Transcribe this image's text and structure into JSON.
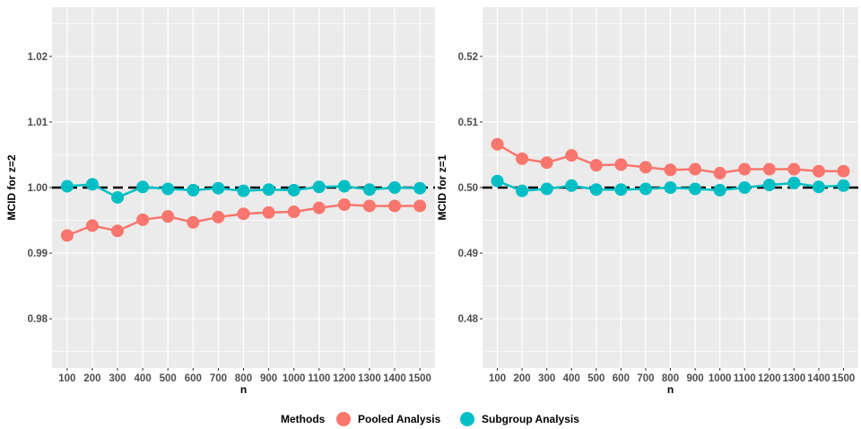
{
  "legend": {
    "title": "Methods",
    "items": [
      {
        "label": "Pooled Analysis",
        "color": "#F8766D"
      },
      {
        "label": "Subgroup Analysis",
        "color": "#00BFC4"
      }
    ]
  },
  "chart_data": [
    {
      "type": "line",
      "xlabel": "n",
      "ylabel": "MCID for z=2",
      "categories": [
        "100",
        "200",
        "300",
        "400",
        "500",
        "600",
        "700",
        "800",
        "900",
        "1000",
        "1100",
        "1200",
        "1300",
        "1400",
        "1500"
      ],
      "ylim": [
        0.9725,
        1.0275
      ],
      "yticks": [
        0.98,
        0.99,
        1.0,
        1.01,
        1.02
      ],
      "ytick_labels": [
        "0.98",
        "0.99",
        "1.00",
        "1.01",
        "1.02"
      ],
      "reference_line": 1.0,
      "grid": true,
      "series": [
        {
          "name": "Pooled Analysis",
          "color": "#F8766D",
          "values": [
            0.9927,
            0.9942,
            0.9934,
            0.9951,
            0.9956,
            0.9947,
            0.9955,
            0.996,
            0.9962,
            0.9963,
            0.9969,
            0.9974,
            0.9972,
            0.9972,
            0.9972
          ]
        },
        {
          "name": "Subgroup Analysis",
          "color": "#00BFC4",
          "values": [
            1.0002,
            1.0005,
            0.9985,
            1.0001,
            0.9998,
            0.9996,
            0.9999,
            0.9995,
            0.9997,
            0.9996,
            1.0001,
            1.0002,
            0.9997,
            1.0,
            0.9999
          ]
        }
      ]
    },
    {
      "type": "line",
      "xlabel": "n",
      "ylabel": "MCID for z=1",
      "categories": [
        "100",
        "200",
        "300",
        "400",
        "500",
        "600",
        "700",
        "800",
        "900",
        "1000",
        "1100",
        "1200",
        "1300",
        "1400",
        "1500"
      ],
      "ylim": [
        0.4725,
        0.5275
      ],
      "yticks": [
        0.48,
        0.49,
        0.5,
        0.51,
        0.52
      ],
      "ytick_labels": [
        "0.48",
        "0.49",
        "0.50",
        "0.51",
        "0.52"
      ],
      "reference_line": 0.5,
      "grid": true,
      "series": [
        {
          "name": "Pooled Analysis",
          "color": "#F8766D",
          "values": [
            0.5066,
            0.5044,
            0.5038,
            0.5049,
            0.5034,
            0.5035,
            0.5031,
            0.5027,
            0.5028,
            0.5022,
            0.5028,
            0.5028,
            0.5028,
            0.5025,
            0.5025
          ]
        },
        {
          "name": "Subgroup Analysis",
          "color": "#00BFC4",
          "values": [
            0.501,
            0.4995,
            0.4998,
            0.5003,
            0.4997,
            0.4997,
            0.4998,
            0.5,
            0.4998,
            0.4996,
            0.5,
            0.5004,
            0.5007,
            0.5001,
            0.5003
          ]
        }
      ]
    }
  ]
}
